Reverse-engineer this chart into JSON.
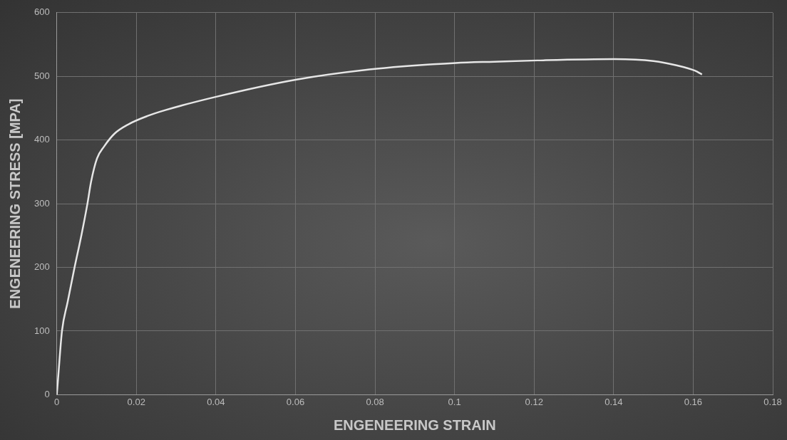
{
  "chart_data": {
    "type": "line",
    "xlabel": "ENGENEERING STRAIN",
    "ylabel": "ENGENEERING STRESS [MPA]",
    "xlim": [
      0,
      0.18
    ],
    "xticks": [
      0,
      0.02,
      0.04,
      0.06,
      0.08,
      0.1,
      0.12,
      0.14,
      0.16,
      0.18
    ],
    "ylim": [
      0,
      600
    ],
    "yticks": [
      0,
      100,
      200,
      300,
      400,
      500,
      600
    ],
    "grid": true,
    "legend": false,
    "marker": "none",
    "line_style": "solid",
    "series": [
      {
        "color": "#e6e6e6",
        "x": [
          0,
          0.0004,
          0.0013,
          0.0027,
          0.0044,
          0.0062,
          0.0077,
          0.0086,
          0.0101,
          0.0119,
          0.0145,
          0.0181,
          0.0229,
          0.0273,
          0.0401,
          0.0603,
          0.0805,
          0.1003,
          0.11,
          0.1208,
          0.1402,
          0.15,
          0.156,
          0.1604,
          0.1622
        ],
        "values": [
          0,
          32,
          100,
          145,
          198,
          251,
          300,
          334,
          371,
          390,
          410,
          425,
          438,
          447,
          468,
          495,
          512,
          521,
          523,
          525,
          527,
          524,
          517,
          509,
          503
        ]
      }
    ]
  }
}
